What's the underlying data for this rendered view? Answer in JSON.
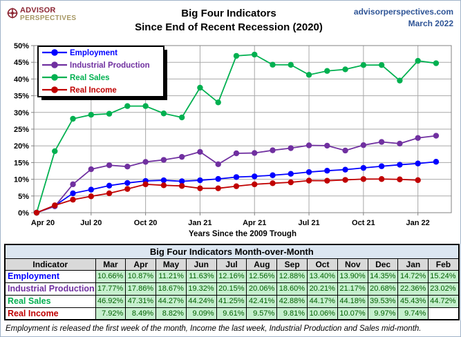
{
  "header": {
    "logo_line1": "ADVISOR",
    "logo_line2": "PERSPECTIVES",
    "title_line1": "Big Four Indicators",
    "title_line2": "Since End of Recent Recession (2020)",
    "site": "advisorperspectives.com",
    "date": "March 2022"
  },
  "colors": {
    "blue": "#0000FF",
    "purple": "#7030A0",
    "green": "#00B050",
    "red": "#C00000",
    "header_blue": "#2E5496",
    "logo_red": "#8C2633",
    "logo_tan": "#A69763",
    "grid": "#A8A8A8",
    "plot_border": "#808080",
    "table_title_bg": "#DCE6F1",
    "table_header_bg": "#D9D9D9",
    "cell_bg": "#C6EFCE",
    "cell_text": "#006100"
  },
  "chart_data": {
    "type": "line",
    "title": "Big Four Indicators Since End of Recent Recession (2020)",
    "xlabel": "Years Since the 2009 Trough",
    "ylabel": "",
    "ylim": [
      0,
      50
    ],
    "y_tick_step": 5,
    "y_tick_suffix": "%",
    "grid": true,
    "legend_position": "top-left",
    "x_categories": [
      "Apr 20",
      "May 20",
      "Jun 20",
      "Jul 20",
      "Aug 20",
      "Sep 20",
      "Oct 20",
      "Nov 20",
      "Dec 20",
      "Jan 21",
      "Feb 21",
      "Mar 21",
      "Apr 21",
      "May 21",
      "Jun 21",
      "Jul 21",
      "Aug 21",
      "Sep 21",
      "Oct 21",
      "Nov 21",
      "Dec 21",
      "Jan 22",
      "Feb 22"
    ],
    "x_tick_indices": [
      0,
      3,
      6,
      9,
      12,
      15,
      18,
      21
    ],
    "x_tick_labels": [
      "Apr 20",
      "Jul 20",
      "Oct 20",
      "Jan 21",
      "Apr 21",
      "Jul 21",
      "Oct 21",
      "Jan 22"
    ],
    "series": [
      {
        "name": "Employment",
        "color": "#0000FF",
        "values": [
          0,
          2.1,
          5.8,
          6.9,
          8.1,
          8.9,
          9.5,
          9.7,
          9.4,
          9.7,
          10.1,
          10.66,
          10.87,
          11.21,
          11.63,
          12.16,
          12.56,
          12.88,
          13.4,
          13.9,
          14.35,
          14.72,
          15.24
        ]
      },
      {
        "name": "Industrial Production",
        "color": "#7030A0",
        "values": [
          0,
          1.9,
          8.5,
          13.0,
          14.2,
          13.8,
          15.2,
          15.8,
          16.7,
          18.2,
          14.5,
          17.77,
          17.86,
          18.67,
          19.32,
          20.15,
          20.06,
          18.6,
          20.21,
          21.17,
          20.68,
          22.36,
          23.02
        ]
      },
      {
        "name": "Real Sales",
        "color": "#00B050",
        "values": [
          0,
          18.4,
          28.1,
          29.3,
          29.6,
          31.9,
          31.9,
          29.7,
          28.5,
          37.4,
          33.0,
          46.92,
          47.31,
          44.27,
          44.24,
          41.25,
          42.41,
          42.88,
          44.17,
          44.18,
          39.53,
          45.43,
          44.72
        ]
      },
      {
        "name": "Real Income",
        "color": "#C00000",
        "values": [
          0,
          2.2,
          3.9,
          4.9,
          5.8,
          7.1,
          8.5,
          8.2,
          8.0,
          7.3,
          7.3,
          7.92,
          8.49,
          8.82,
          9.09,
          9.61,
          9.57,
          9.81,
          10.06,
          10.07,
          9.97,
          9.74,
          null
        ]
      }
    ]
  },
  "table": {
    "title": "Big Four Indicators Month-over-Month",
    "columns": [
      "Indicator",
      "Mar",
      "Apr",
      "May",
      "Jun",
      "Jul",
      "Aug",
      "Sep",
      "Oct",
      "Nov",
      "Dec",
      "Jan",
      "Feb"
    ],
    "rows": [
      {
        "label": "Employment",
        "color": "#0000FF",
        "values": [
          "10.66%",
          "10.87%",
          "11.21%",
          "11.63%",
          "12.16%",
          "12.56%",
          "12.88%",
          "13.40%",
          "13.90%",
          "14.35%",
          "14.72%",
          "15.24%"
        ]
      },
      {
        "label": "Industrial Production",
        "color": "#7030A0",
        "values": [
          "17.77%",
          "17.86%",
          "18.67%",
          "19.32%",
          "20.15%",
          "20.06%",
          "18.60%",
          "20.21%",
          "21.17%",
          "20.68%",
          "22.36%",
          "23.02%"
        ]
      },
      {
        "label": "Real Sales",
        "color": "#00B050",
        "values": [
          "46.92%",
          "47.31%",
          "44.27%",
          "44.24%",
          "41.25%",
          "42.41%",
          "42.88%",
          "44.17%",
          "44.18%",
          "39.53%",
          "45.43%",
          "44.72%"
        ]
      },
      {
        "label": "Real Income",
        "color": "#C00000",
        "values": [
          "7.92%",
          "8.49%",
          "8.82%",
          "9.09%",
          "9.61%",
          "9.57%",
          "9.81%",
          "10.06%",
          "10.07%",
          "9.97%",
          "9.74%",
          ""
        ]
      }
    ],
    "footnote": "Employment is released the first week of the month, Income the last week, Industrial Production and Sales mid-month."
  }
}
